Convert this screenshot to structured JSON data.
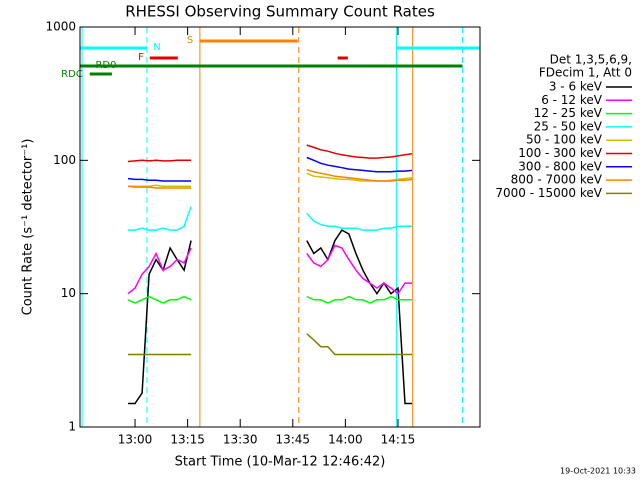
{
  "chart_data": {
    "type": "line",
    "title": "RHESSI Observing Summary Count Rates",
    "xlabel": "Start Time (10-Mar-12 12:46:42)",
    "ylabel": "Count Rate (s⁻¹ detector⁻¹)",
    "footer": "19-Oct-2021 10:33",
    "legend_header": [
      "Det 1,3,5,6,9,",
      "FDecim 1, Att 0"
    ],
    "log_y": true,
    "ylim": [
      1,
      1000
    ],
    "yticks": [
      1,
      10,
      100,
      1000
    ],
    "xlim": [
      764.3,
      878.4
    ],
    "xticks": [
      {
        "value": 780,
        "label": "13:00"
      },
      {
        "value": 795,
        "label": "13:15"
      },
      {
        "value": 810,
        "label": "13:30"
      },
      {
        "value": 825,
        "label": "13:45"
      },
      {
        "value": 840,
        "label": "14:00"
      },
      {
        "value": 855,
        "label": "14:15"
      }
    ],
    "x": [
      778,
      780,
      782,
      784,
      786,
      788,
      790,
      792,
      794,
      796,
      812,
      829,
      831,
      833,
      835,
      837,
      839,
      841,
      843,
      845,
      847,
      849,
      851,
      853,
      855,
      857,
      859
    ],
    "series": [
      {
        "name": "3 - 6 keV",
        "color": "#000000",
        "values": [
          1.5,
          1.5,
          1.8,
          14,
          18,
          15,
          22,
          18,
          15,
          25,
          null,
          25,
          20,
          22,
          18,
          25,
          30,
          28,
          20,
          15,
          12,
          10,
          12,
          10,
          11,
          1.5,
          1.5
        ]
      },
      {
        "name": "6 - 12 keV",
        "color": "#ff00ff",
        "values": [
          10,
          11,
          14,
          16,
          20,
          15,
          16,
          18,
          17,
          22,
          null,
          20,
          17,
          16,
          18,
          23,
          22,
          18,
          15,
          13,
          12,
          11,
          12,
          11,
          10,
          12,
          12
        ]
      },
      {
        "name": "12 - 25 keV",
        "color": "#00ff00",
        "values": [
          9,
          8.5,
          9,
          9.5,
          9,
          8.5,
          9,
          9,
          9.5,
          9,
          null,
          9.5,
          9,
          9,
          8.5,
          9,
          9,
          9.5,
          9,
          9,
          8.5,
          9,
          9,
          9.5,
          9,
          9,
          9
        ]
      },
      {
        "name": "25 - 50 keV",
        "color": "#00ffff",
        "values": [
          30,
          30,
          31,
          30,
          30,
          31,
          30,
          30,
          32,
          45,
          null,
          40,
          35,
          33,
          32,
          32,
          31,
          31,
          31,
          30,
          30,
          30,
          31,
          31,
          32,
          32,
          32
        ]
      },
      {
        "name": "50 - 100 keV",
        "color": "#d0c000",
        "values": [
          64,
          64,
          64,
          64,
          65,
          64,
          64,
          64,
          64,
          64,
          null,
          80,
          76,
          75,
          74,
          73,
          72,
          72,
          71,
          70,
          70,
          70,
          70,
          71,
          72,
          73,
          74
        ]
      },
      {
        "name": "100 - 300 keV",
        "color": "#e00000",
        "values": [
          98,
          99,
          100,
          99,
          100,
          99,
          99,
          100,
          100,
          100,
          null,
          130,
          125,
          120,
          117,
          113,
          110,
          108,
          106,
          105,
          104,
          104,
          105,
          106,
          108,
          110,
          112
        ]
      },
      {
        "name": "300 - 800 keV",
        "color": "#0000ff",
        "values": [
          73,
          72,
          72,
          71,
          71,
          70,
          70,
          70,
          70,
          70,
          null,
          105,
          100,
          95,
          92,
          90,
          88,
          86,
          85,
          84,
          83,
          82,
          82,
          82,
          83,
          83,
          84
        ]
      },
      {
        "name": "800 - 7000 keV",
        "color": "#ff8000",
        "values": [
          64,
          63,
          63,
          63,
          62,
          62,
          62,
          62,
          62,
          62,
          null,
          85,
          82,
          80,
          78,
          76,
          75,
          74,
          73,
          72,
          71,
          70,
          70,
          70,
          71,
          71,
          72
        ]
      },
      {
        "name": "7000 - 15000 keV",
        "color": "#808000",
        "values": [
          3.5,
          3.5,
          3.5,
          3.5,
          3.5,
          3.5,
          3.5,
          3.5,
          3.5,
          3.5,
          null,
          5,
          4.5,
          4,
          4,
          3.5,
          3.5,
          3.5,
          3.5,
          3.5,
          3.5,
          3.5,
          3.5,
          3.5,
          3.5,
          3.5,
          3.5
        ]
      }
    ],
    "flags": [
      {
        "label": "N",
        "color": "#00ffff",
        "segments": [
          [
            764.3,
            783.4
          ],
          [
            854.6,
            878.4
          ]
        ]
      },
      {
        "label": "F",
        "color": "#e00000",
        "segments": [
          [
            784.2,
            792.2
          ],
          [
            837.8,
            840.7
          ]
        ]
      },
      {
        "label": "S",
        "color": "#ff8000",
        "segments": [
          [
            798.5,
            826.4
          ]
        ]
      },
      {
        "label": "RD0",
        "color": "#008000",
        "segments": [
          [
            764.3,
            873.4
          ]
        ]
      },
      {
        "label": "RDC",
        "color": "#008000",
        "segments": [
          [
            767.1,
            773.4
          ]
        ]
      }
    ],
    "markers": [
      {
        "x": 764.9,
        "color": "#00ffff",
        "dashed": false
      },
      {
        "x": 783.4,
        "color": "#00ffff",
        "dashed": true
      },
      {
        "x": 798.5,
        "color": "#ff8000",
        "dashed": false
      },
      {
        "x": 826.7,
        "color": "#ff8000",
        "dashed": true
      },
      {
        "x": 854.6,
        "color": "#00ffff",
        "dashed": false
      },
      {
        "x": 859.2,
        "color": "#ff8000",
        "dashed": false
      },
      {
        "x": 873.4,
        "color": "#00ffff",
        "dashed": true
      }
    ]
  }
}
